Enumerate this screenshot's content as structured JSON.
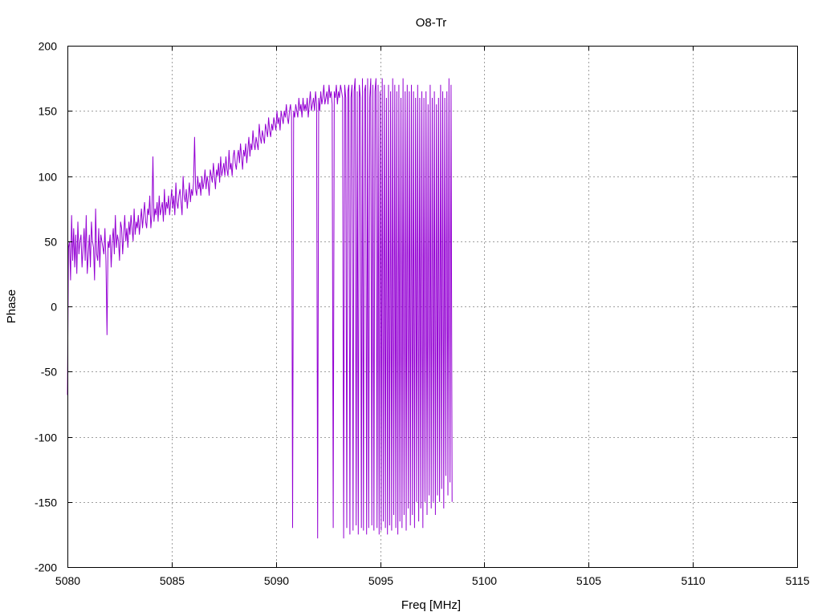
{
  "chart_data": {
    "type": "line",
    "title": "O8-Tr",
    "xlabel": "Freq [MHz]",
    "ylabel": "Phase",
    "xlim": [
      5080,
      5115
    ],
    "ylim": [
      -200,
      200
    ],
    "xticks": [
      5080,
      5085,
      5090,
      5095,
      5100,
      5105,
      5110,
      5115
    ],
    "yticks": [
      -200,
      -150,
      -100,
      -50,
      0,
      50,
      100,
      150,
      200
    ],
    "grid": true,
    "legend": "none",
    "series": [
      {
        "color": "#9400d3",
        "x_start": 5080.0,
        "x_step": 0.05,
        "y": [
          -68,
          45,
          50,
          20,
          70,
          35,
          60,
          30,
          55,
          25,
          65,
          40,
          50,
          55,
          30,
          45,
          60,
          35,
          70,
          25,
          40,
          55,
          30,
          65,
          50,
          45,
          20,
          75,
          40,
          35,
          60,
          30,
          55,
          50,
          45,
          40,
          60,
          35,
          -22,
          50,
          45,
          55,
          30,
          50,
          60,
          40,
          70,
          45,
          55,
          50,
          35,
          65,
          60,
          40,
          55,
          70,
          50,
          60,
          45,
          65,
          55,
          70,
          60,
          50,
          75,
          55,
          65,
          60,
          70,
          55,
          65,
          75,
          60,
          70,
          80,
          65,
          60,
          75,
          70,
          85,
          60,
          70,
          115,
          65,
          75,
          70,
          80,
          65,
          85,
          70,
          75,
          80,
          65,
          90,
          70,
          80,
          75,
          85,
          70,
          80,
          90,
          75,
          85,
          70,
          95,
          80,
          75,
          85,
          90,
          80,
          70,
          100,
          85,
          80,
          90,
          75,
          85,
          95,
          80,
          90,
          85,
          95,
          130,
          90,
          85,
          100,
          90,
          95,
          85,
          100,
          90,
          95,
          105,
          90,
          100,
          95,
          85,
          105,
          100,
          95,
          110,
          100,
          90,
          105,
          100,
          110,
          95,
          115,
          100,
          105,
          110,
          100,
          115,
          105,
          100,
          120,
          105,
          110,
          100,
          115,
          120,
          110,
          105,
          115,
          120,
          110,
          125,
          115,
          105,
          120,
          115,
          125,
          110,
          120,
          130,
          115,
          125,
          120,
          135,
          125,
          120,
          130,
          125,
          120,
          140,
          130,
          125,
          135,
          130,
          125,
          140,
          135,
          130,
          145,
          135,
          130,
          140,
          135,
          145,
          140,
          135,
          150,
          140,
          145,
          135,
          150,
          145,
          140,
          150,
          145,
          155,
          145,
          140,
          150,
          155,
          145,
          -170,
          150,
          145,
          155,
          150,
          145,
          160,
          150,
          155,
          145,
          160,
          150,
          155,
          150,
          160,
          145,
          155,
          165,
          150,
          155,
          160,
          150,
          165,
          155,
          -178,
          160,
          150,
          165,
          155,
          160,
          170,
          155,
          160,
          165,
          155,
          170,
          160,
          165,
          155,
          -170,
          165,
          160,
          170,
          155,
          165,
          160,
          170,
          165,
          160,
          -178,
          170,
          160,
          -170,
          165,
          170,
          -175,
          160,
          170,
          -172,
          165,
          175,
          -168,
          165,
          -175,
          170,
          160,
          -170,
          175,
          -172,
          165,
          170,
          -175,
          175,
          -170,
          160,
          175,
          -168,
          170,
          -172,
          165,
          175,
          -170,
          170,
          -175,
          165,
          -172,
          175,
          -165,
          170,
          -170,
          160,
          -175,
          170,
          -168,
          165,
          -172,
          175,
          -160,
          170,
          -170,
          165,
          -175,
          170,
          -165,
          160,
          -170,
          175,
          -160,
          165,
          -172,
          170,
          -155,
          165,
          -168,
          170,
          -160,
          165,
          -170,
          160,
          -150,
          170,
          -165,
          160,
          -155,
          165,
          -170,
          160,
          -150,
          165,
          -160,
          155,
          -145,
          170,
          -155,
          160,
          -150,
          165,
          -160,
          155,
          -145,
          160,
          -150,
          170,
          -140,
          165,
          -155,
          160,
          -130,
          165,
          -145,
          175,
          -135,
          170,
          -150
        ]
      }
    ]
  }
}
